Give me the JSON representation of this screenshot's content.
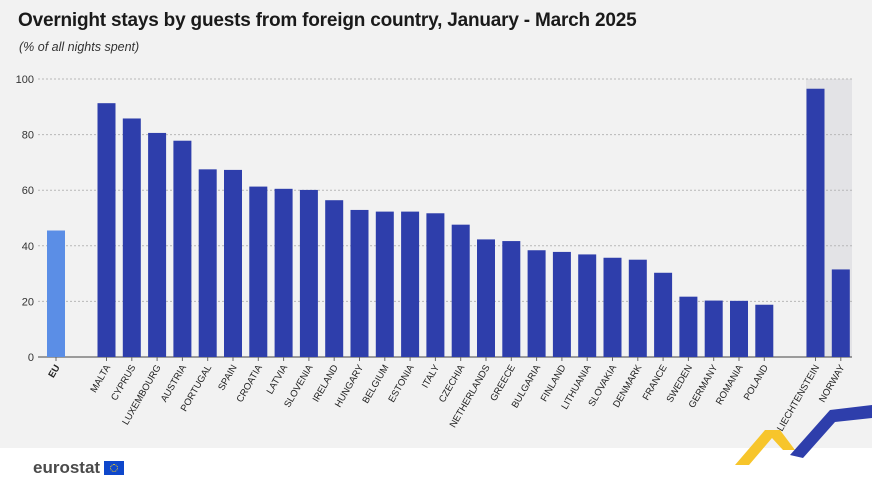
{
  "header": {
    "title": "Overnight stays by guests from foreign country, January - March 2025",
    "subtitle": "(% of all nights spent)"
  },
  "footer": {
    "logo_text": "eurostat"
  },
  "colors": {
    "eu_bar": "#5b8ee6",
    "country_bar": "#2e3eab",
    "efta_background": "#e3e3e6",
    "grid": "#b8b8b8",
    "accent_yellow": "#f7c52b",
    "accent_blue": "#2e3eab"
  },
  "chart_data": {
    "type": "bar",
    "title": "Overnight stays by guests from foreign country, January - March 2025",
    "subtitle": "(% of all nights spent)",
    "ylim": [
      0,
      100
    ],
    "yticks": [
      0,
      20,
      40,
      60,
      80,
      100
    ],
    "grid": true,
    "groups": [
      {
        "group": "eu",
        "categories": [
          "EU"
        ],
        "values": [
          45.5
        ]
      },
      {
        "group": "member_states",
        "categories": [
          "MALTA",
          "CYPRUS",
          "LUXEMBOURG",
          "AUSTRIA",
          "PORTUGAL",
          "SPAIN",
          "CROATIA",
          "LATVIA",
          "SLOVENIA",
          "IRELAND",
          "HUNGARY",
          "BELGIUM",
          "ESTONIA",
          "ITALY",
          "CZECHIA",
          "NETHERLANDS",
          "GREECE",
          "BULGARIA",
          "FINLAND",
          "LITHUANIA",
          "SLOVAKIA",
          "DENMARK",
          "FRANCE",
          "SWEDEN",
          "GERMANY",
          "ROMANIA",
          "POLAND"
        ],
        "values": [
          91.3,
          85.8,
          80.6,
          77.8,
          67.5,
          67.3,
          61.3,
          60.5,
          60.1,
          56.4,
          52.9,
          52.3,
          52.3,
          51.7,
          47.6,
          42.3,
          41.7,
          38.4,
          37.8,
          36.9,
          35.7,
          35.0,
          30.3,
          21.7,
          20.3,
          20.2,
          18.8
        ]
      },
      {
        "group": "efta",
        "categories": [
          "LIECHTENSTEIN",
          "NORWAY"
        ],
        "values": [
          96.5,
          31.5
        ]
      }
    ]
  }
}
